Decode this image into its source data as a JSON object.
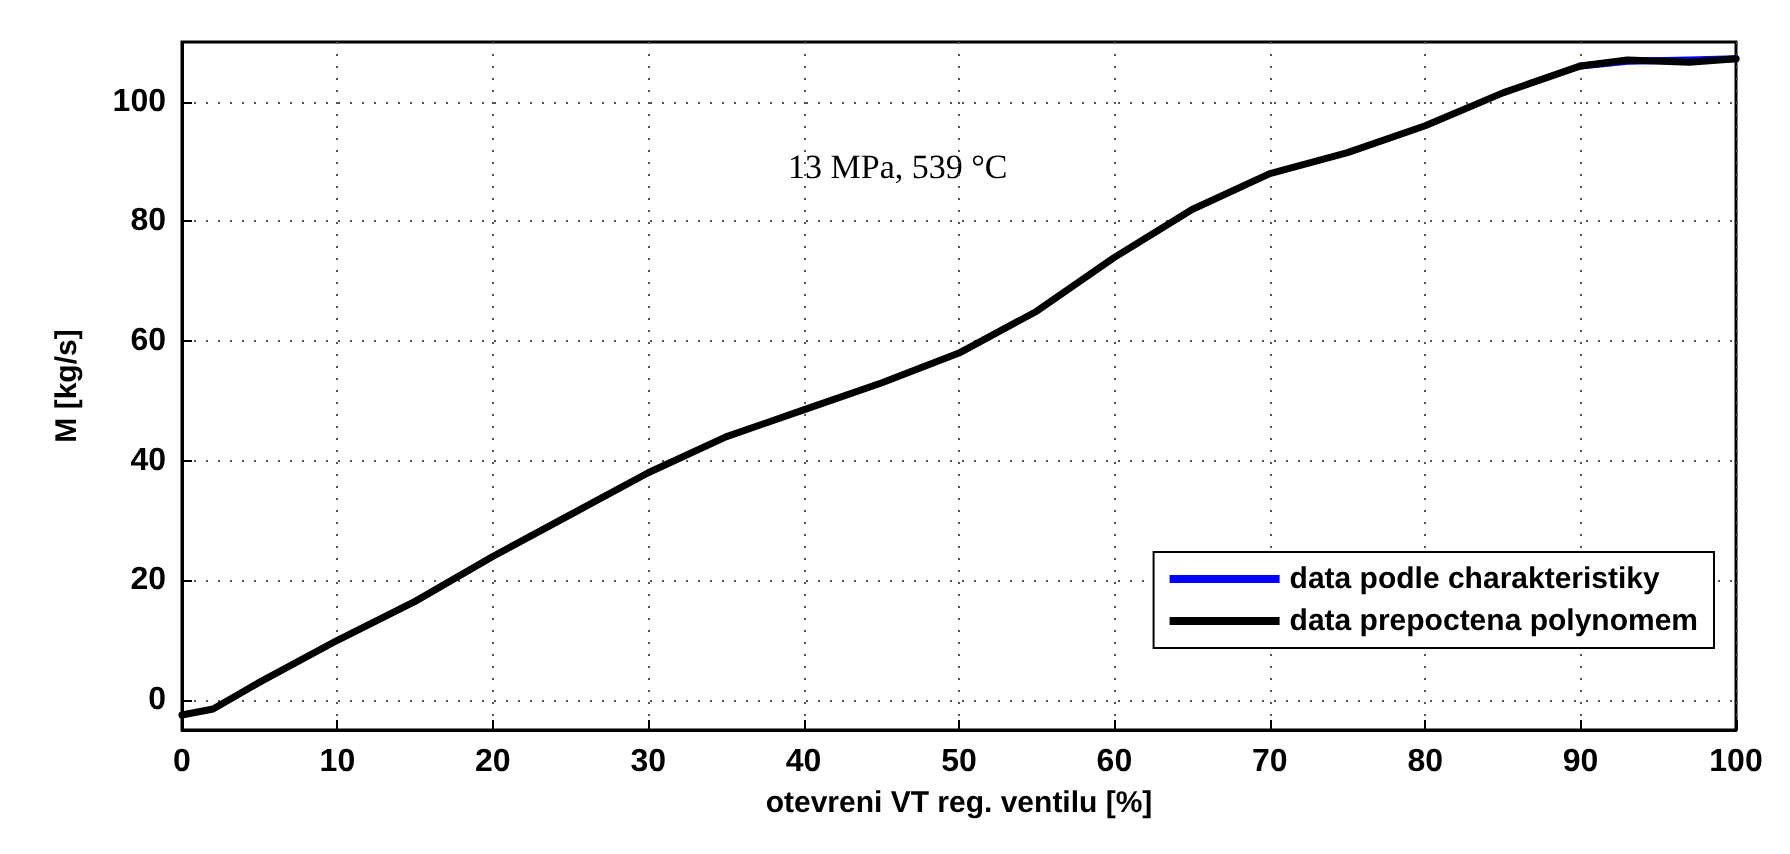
{
  "chart_data": {
    "type": "line",
    "xlabel": "otevreni VT reg. ventilu [%]",
    "ylabel": "M [kg/s]",
    "x": [
      0,
      2,
      5,
      10,
      15,
      20,
      25,
      30,
      35,
      40,
      45,
      50,
      55,
      60,
      65,
      70,
      75,
      80,
      85,
      90,
      93,
      97,
      100
    ],
    "series": [
      {
        "name": "data podle charakteristiky",
        "color": "#0000ff",
        "values": [
          null,
          null,
          null,
          null,
          null,
          null,
          null,
          null,
          null,
          null,
          null,
          null,
          null,
          null,
          null,
          null,
          null,
          null,
          null,
          106,
          106.8,
          107,
          107.2
        ]
      },
      {
        "name": "data prepoctena polynomem",
        "color": "#000000",
        "values": [
          -2.5,
          -1.5,
          3,
          10,
          16.5,
          24,
          31,
          38,
          44,
          48.5,
          53,
          58,
          65,
          74,
          82,
          88,
          91.5,
          96,
          101.5,
          106,
          107,
          106.6,
          107.2
        ]
      }
    ],
    "annotations": [
      "13 MPa, 539 °C"
    ],
    "xlim": [
      0,
      100
    ],
    "xticks": [
      0,
      10,
      20,
      30,
      40,
      50,
      60,
      70,
      80,
      90,
      100
    ],
    "ylim": [
      -5,
      110
    ],
    "yticks": [
      0,
      20,
      40,
      60,
      80,
      100
    ],
    "grid": true,
    "legend": "bottom right",
    "marker": "none",
    "line_style": "solid"
  }
}
